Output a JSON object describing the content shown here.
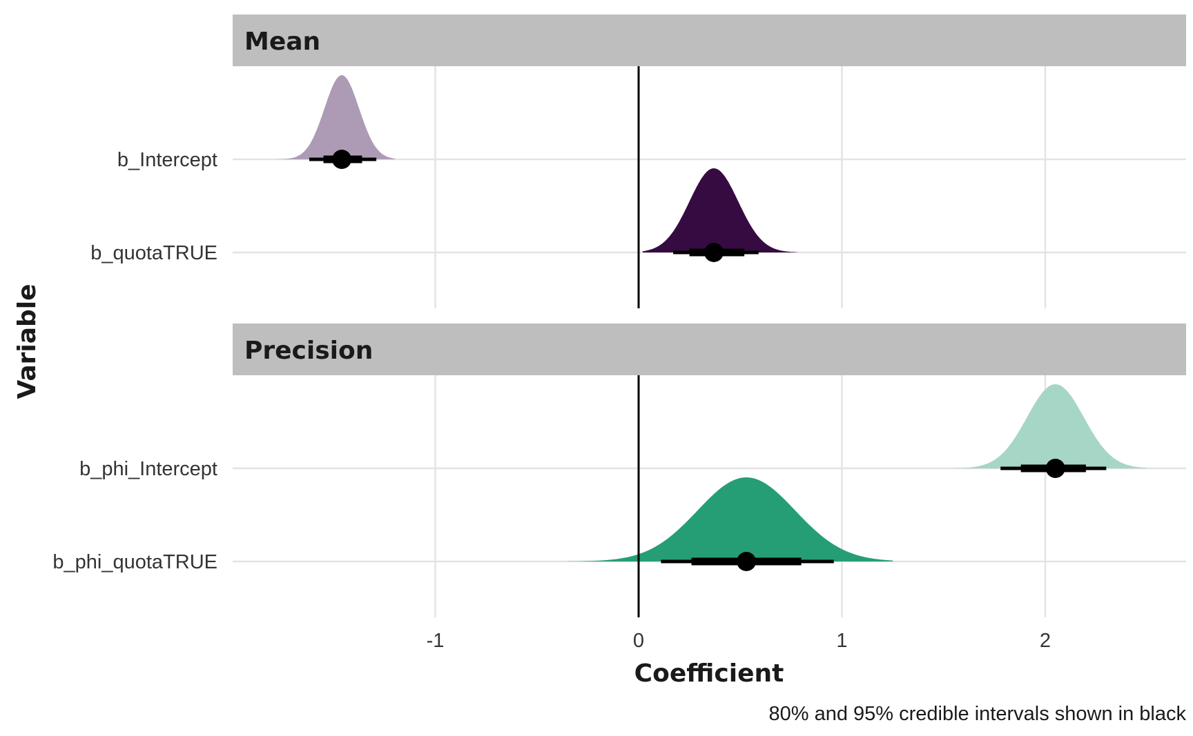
{
  "chart_data": {
    "type": "halfeye",
    "xlabel": "Coefficient",
    "ylabel": "Variable",
    "caption": "80% and 95% credible intervals shown in black",
    "xlim": [
      -2.0,
      2.7
    ],
    "x_ticks": [
      -1,
      0,
      1,
      2
    ],
    "x_tick_labels": [
      "-1",
      "0",
      "1",
      "2"
    ],
    "reference_line_x": 0,
    "grid": true,
    "panels": [
      {
        "title": "Mean",
        "variables": [
          {
            "name": "b_Intercept",
            "median": -1.46,
            "ci80": [
              -1.55,
              -1.36
            ],
            "ci95": [
              -1.62,
              -1.29
            ],
            "sd": 0.085,
            "support": [
              -1.78,
              -1.2
            ],
            "color": "#ad9bb6"
          },
          {
            "name": "b_quotaTRUE",
            "median": 0.37,
            "ci80": [
              0.25,
              0.52
            ],
            "ci95": [
              0.17,
              0.59
            ],
            "sd": 0.12,
            "support": [
              0.02,
              0.78
            ],
            "color": "#360b41"
          }
        ]
      },
      {
        "title": "Precision",
        "variables": [
          {
            "name": "b_phi_Intercept",
            "median": 2.05,
            "ci80": [
              1.88,
              2.2
            ],
            "ci95": [
              1.78,
              2.3
            ],
            "sd": 0.14,
            "support": [
              1.55,
              2.5
            ],
            "color": "#a6d6c6"
          },
          {
            "name": "b_phi_quotaTRUE",
            "median": 0.53,
            "ci80": [
              0.26,
              0.8
            ],
            "ci95": [
              0.11,
              0.96
            ],
            "sd": 0.24,
            "support": [
              -0.35,
              1.25
            ],
            "color": "#259e76"
          }
        ]
      }
    ]
  }
}
